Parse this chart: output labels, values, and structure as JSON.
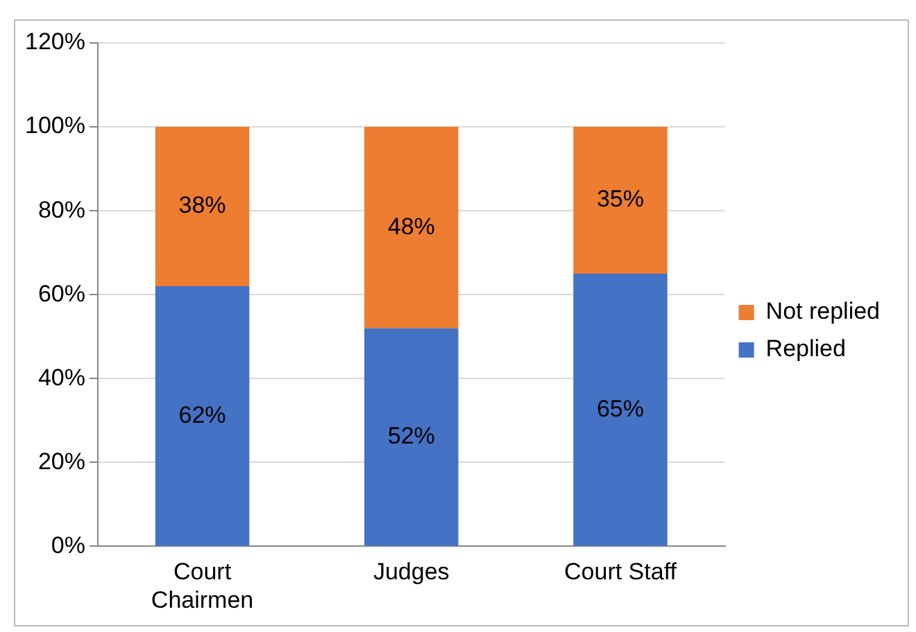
{
  "chart_data": {
    "type": "bar",
    "stacked": true,
    "categories": [
      "Court Chairmen",
      "Judges",
      "Court Staff"
    ],
    "series": [
      {
        "name": "Replied",
        "color": "#4472c4",
        "values": [
          62,
          52,
          65
        ],
        "value_labels": [
          "62%",
          "52%",
          "65%"
        ]
      },
      {
        "name": "Not replied",
        "color": "#ed7d31",
        "values": [
          38,
          48,
          35
        ],
        "value_labels": [
          "38%",
          "48%",
          "35%"
        ]
      }
    ],
    "ylim": [
      0,
      120
    ],
    "yticks": [
      {
        "value": 0,
        "label": "0%"
      },
      {
        "value": 20,
        "label": "20%"
      },
      {
        "value": 40,
        "label": "40%"
      },
      {
        "value": 60,
        "label": "60%"
      },
      {
        "value": 80,
        "label": "80%"
      },
      {
        "value": 100,
        "label": "100%"
      },
      {
        "value": 120,
        "label": "120%"
      }
    ],
    "grid": "y",
    "legend": "right"
  }
}
